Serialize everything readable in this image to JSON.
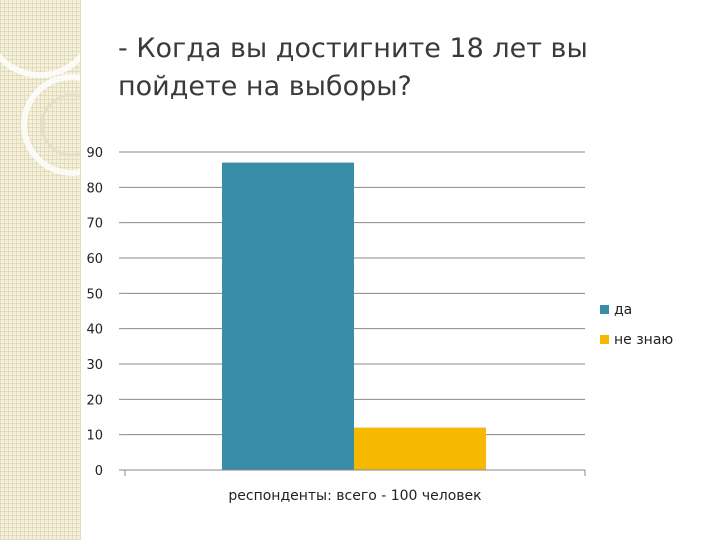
{
  "slide": {
    "title": "- Когда вы достигните 18 лет вы\nпойдете на выборы?"
  },
  "colors": {
    "series_yes": "#3a8da6",
    "series_dont_know": "#f6b800",
    "gridline": "#888888",
    "decor_background": "#f4f0dc"
  },
  "chart_data": {
    "type": "bar",
    "title": "",
    "xlabel": "респонденты: всего - 100 человек",
    "ylabel": "",
    "categories": [
      ""
    ],
    "series": [
      {
        "name": "да",
        "values": [
          87
        ]
      },
      {
        "name": "не знаю",
        "values": [
          12
        ]
      }
    ],
    "ylim": [
      0,
      90
    ],
    "yticks": [
      0,
      10,
      20,
      30,
      40,
      50,
      60,
      70,
      80,
      90
    ],
    "grid": true,
    "legend": "right"
  }
}
